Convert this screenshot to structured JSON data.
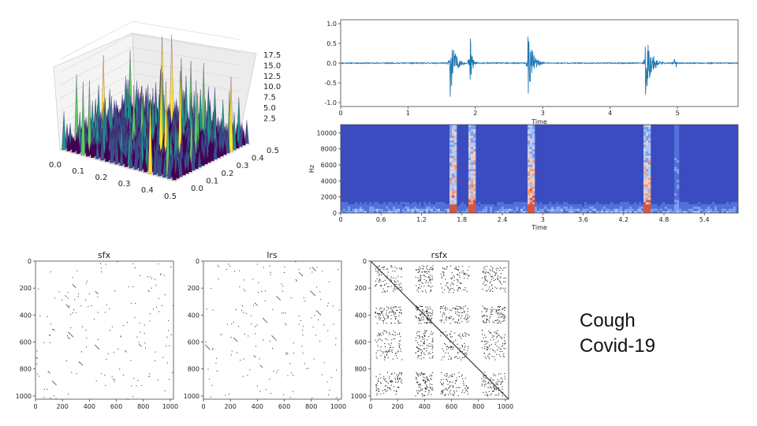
{
  "caption": {
    "line1": "Cough",
    "line2": "Covid-19"
  },
  "chart_data": [
    {
      "type": "surface3d",
      "x_ticks": [
        "0.0",
        "0.1",
        "0.2",
        "0.3",
        "0.4",
        "0.5"
      ],
      "y_ticks": [
        "0.0",
        "0.1",
        "0.2",
        "0.3",
        "0.4",
        "0.5"
      ],
      "z_ticks": [
        "2.5",
        "5.0",
        "7.5",
        "10.0",
        "12.5",
        "15.0",
        "17.5"
      ],
      "xlim": [
        0,
        0.5
      ],
      "ylim": [
        0,
        0.5
      ],
      "zlim": [
        0,
        18
      ],
      "colormap": "viridis"
    },
    {
      "type": "line",
      "xlabel": "Time",
      "x_ticks": [
        "0",
        "1",
        "2",
        "3",
        "4",
        "5"
      ],
      "y_ticks": [
        "1.0",
        "0.5",
        "0.0",
        "-0.5",
        "-1.0"
      ],
      "xlim": [
        0,
        5.9
      ],
      "ylim": [
        -1.1,
        1.1
      ],
      "color": "#1f77b4",
      "bursts": [
        {
          "t": 1.62,
          "amp": 0.96,
          "len": 0.25
        },
        {
          "t": 1.92,
          "amp": 0.92,
          "len": 0.12
        },
        {
          "t": 2.78,
          "amp": 0.98,
          "len": 0.25
        },
        {
          "t": 4.52,
          "amp": 0.98,
          "len": 0.3
        },
        {
          "t": 4.98,
          "amp": 0.12,
          "len": 0.04
        }
      ]
    },
    {
      "type": "heatmap",
      "xlabel": "Time",
      "ylabel": "Hz",
      "x_ticks": [
        "0",
        "0.6",
        "1.2",
        "1.8",
        "2.4",
        "3",
        "3.6",
        "4.2",
        "4.8",
        "5.4"
      ],
      "y_ticks": [
        "10000",
        "8000",
        "6000",
        "4000",
        "2000",
        "0"
      ],
      "xlim": [
        0,
        5.9
      ],
      "ylim": [
        0,
        11025
      ],
      "events": [
        1.62,
        1.92,
        2.78,
        4.52,
        4.98
      ]
    },
    {
      "type": "scatter",
      "title": "sfx",
      "x_ticks": [
        "0",
        "200",
        "400",
        "600",
        "800",
        "1000"
      ],
      "y_ticks": [
        "0",
        "200",
        "400",
        "600",
        "800",
        "1000"
      ],
      "xlim": [
        0,
        1024
      ],
      "ylim": [
        0,
        1024
      ],
      "density": "sparse"
    },
    {
      "type": "scatter",
      "title": "lrs",
      "x_ticks": [
        "0",
        "200",
        "400",
        "600",
        "800",
        "1000"
      ],
      "y_ticks": [
        "0",
        "200",
        "400",
        "600",
        "800",
        "1000"
      ],
      "xlim": [
        0,
        1024
      ],
      "ylim": [
        0,
        1024
      ],
      "density": "sparse"
    },
    {
      "type": "scatter",
      "title": "rsfx",
      "x_ticks": [
        "0",
        "200",
        "400",
        "600",
        "800",
        "1000"
      ],
      "y_ticks": [
        "0",
        "200",
        "400",
        "600",
        "800",
        "1000"
      ],
      "xlim": [
        0,
        1024
      ],
      "ylim": [
        0,
        1024
      ],
      "density": "block",
      "blocks": [
        [
          30,
          230
        ],
        [
          330,
          460
        ],
        [
          510,
          730
        ],
        [
          820,
          1000
        ]
      ]
    }
  ]
}
